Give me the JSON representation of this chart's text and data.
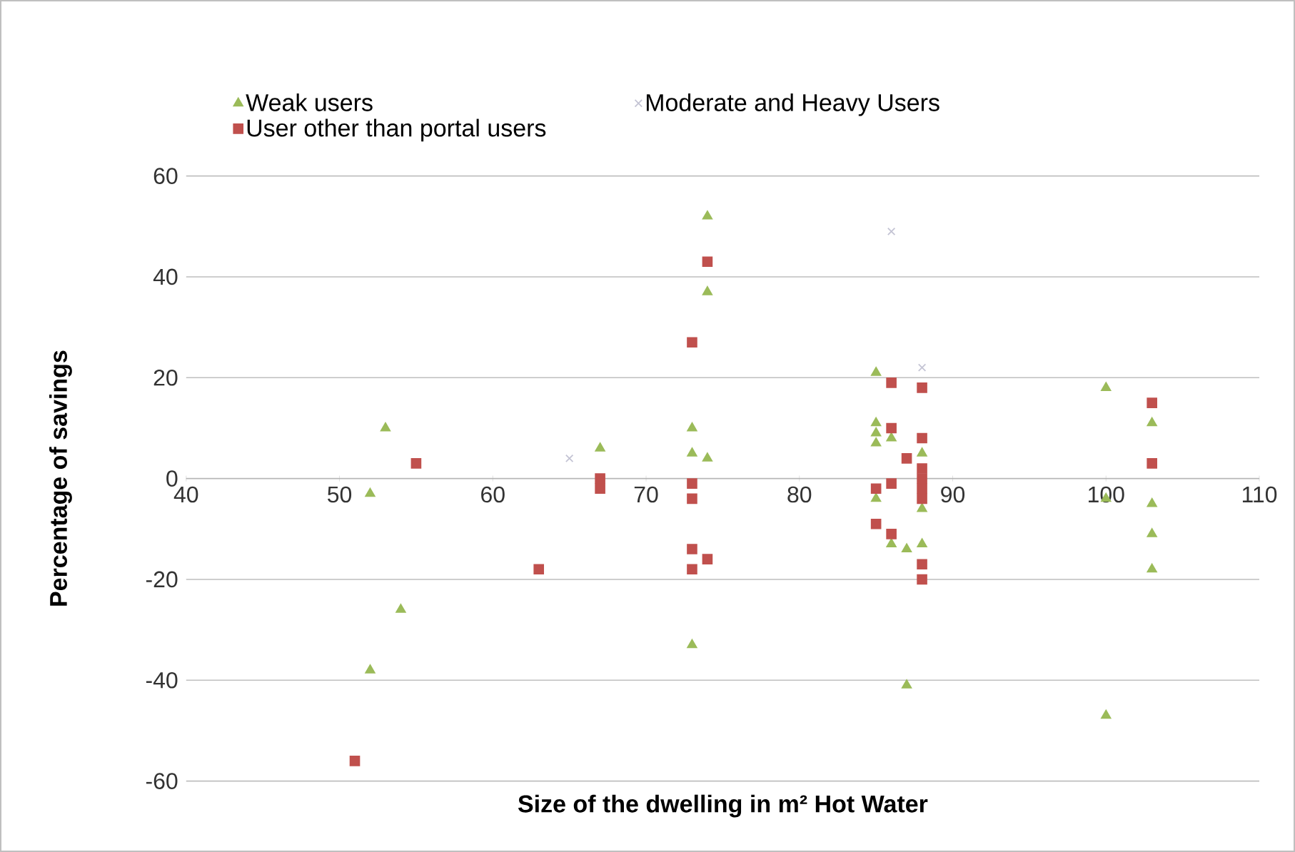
{
  "chart_data": {
    "type": "scatter",
    "xlabel": "Size of the dwelling in m² Hot Water",
    "ylabel": "Percentage of savings",
    "xlim": [
      40,
      110
    ],
    "xticks": [
      40,
      50,
      60,
      70,
      80,
      90,
      100,
      110
    ],
    "ylim": [
      -60,
      60
    ],
    "yticks": [
      -60,
      -40,
      -20,
      0,
      20,
      40,
      60
    ],
    "grid": "y",
    "legend": "top",
    "series": [
      {
        "name": "Weak users",
        "color": "#9bbb59",
        "marker": "triangle",
        "x": [
          53,
          52,
          54,
          52,
          74,
          74,
          73,
          73,
          74,
          73,
          67,
          85,
          85,
          85,
          85,
          85,
          86,
          86,
          87,
          88,
          88,
          88,
          87,
          100,
          100,
          100,
          103,
          103,
          103,
          103
        ],
        "values": [
          10,
          -3,
          -26,
          -38,
          52,
          37,
          10,
          5,
          4,
          -33,
          6,
          21,
          11,
          9,
          7,
          -4,
          8,
          -13,
          -14,
          -13,
          -6,
          5,
          -41,
          18,
          -4,
          -47,
          11,
          -5,
          -11,
          -18
        ]
      },
      {
        "name": "Moderate and Heavy Users",
        "color": "#c4c4d4",
        "marker": "cross",
        "x": [
          65,
          86,
          88
        ],
        "values": [
          4,
          49,
          22
        ]
      },
      {
        "name": "User other than portal users",
        "color": "#c0504d",
        "marker": "square",
        "x": [
          55,
          63,
          51,
          74,
          73,
          67,
          67,
          73,
          73,
          73,
          73,
          74,
          86,
          88,
          86,
          88,
          87,
          85,
          86,
          88,
          88,
          88,
          88,
          85,
          86,
          88,
          88,
          103,
          103
        ],
        "values": [
          3,
          -18,
          -56,
          43,
          27,
          0,
          -2,
          -1,
          -4,
          -14,
          -18,
          -16,
          19,
          18,
          10,
          8,
          4,
          -2,
          -1,
          2,
          0,
          -2,
          -4,
          -9,
          -11,
          -17,
          -20,
          15,
          3
        ]
      }
    ]
  }
}
